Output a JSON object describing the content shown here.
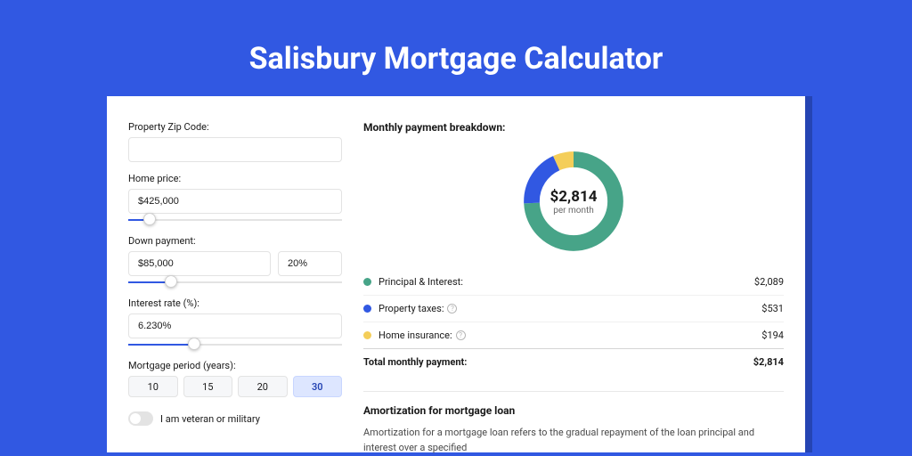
{
  "page": {
    "title": "Salisbury Mortgage Calculator",
    "bg_color": "#3158e2",
    "card_bg": "#ffffff",
    "card_shadow": "#2544b3"
  },
  "form": {
    "zip": {
      "label": "Property Zip Code:",
      "value": ""
    },
    "home_price": {
      "label": "Home price:",
      "value": "$425,000",
      "slider_pct": 10
    },
    "down_payment": {
      "label": "Down payment:",
      "amount": "$85,000",
      "percent": "20%",
      "slider_pct": 20
    },
    "interest_rate": {
      "label": "Interest rate (%):",
      "value": "6.230%",
      "slider_pct": 31
    },
    "period": {
      "label": "Mortgage period (years):",
      "options": [
        "10",
        "15",
        "20",
        "30"
      ],
      "selected_index": 3
    },
    "veteran": {
      "label": "I am veteran or military",
      "on": false
    }
  },
  "breakdown": {
    "title": "Monthly payment breakdown:",
    "center_amount": "$2,814",
    "center_sub": "per month",
    "chart": {
      "type": "donut",
      "slices": [
        {
          "label": "Principal & Interest:",
          "value": "$2,089",
          "pct": 74.2,
          "color": "#47a488"
        },
        {
          "label": "Property taxes:",
          "value": "$531",
          "pct": 18.9,
          "color": "#3158e2",
          "help": true
        },
        {
          "label": "Home insurance:",
          "value": "$194",
          "pct": 6.9,
          "color": "#f4ce59",
          "help": true
        }
      ],
      "stroke_width": 18,
      "bg": "#ffffff"
    },
    "total_row": {
      "label": "Total monthly payment:",
      "value": "$2,814"
    }
  },
  "amortization": {
    "title": "Amortization for mortgage loan",
    "text": "Amortization for a mortgage loan refers to the gradual repayment of the loan principal and interest over a specified"
  }
}
